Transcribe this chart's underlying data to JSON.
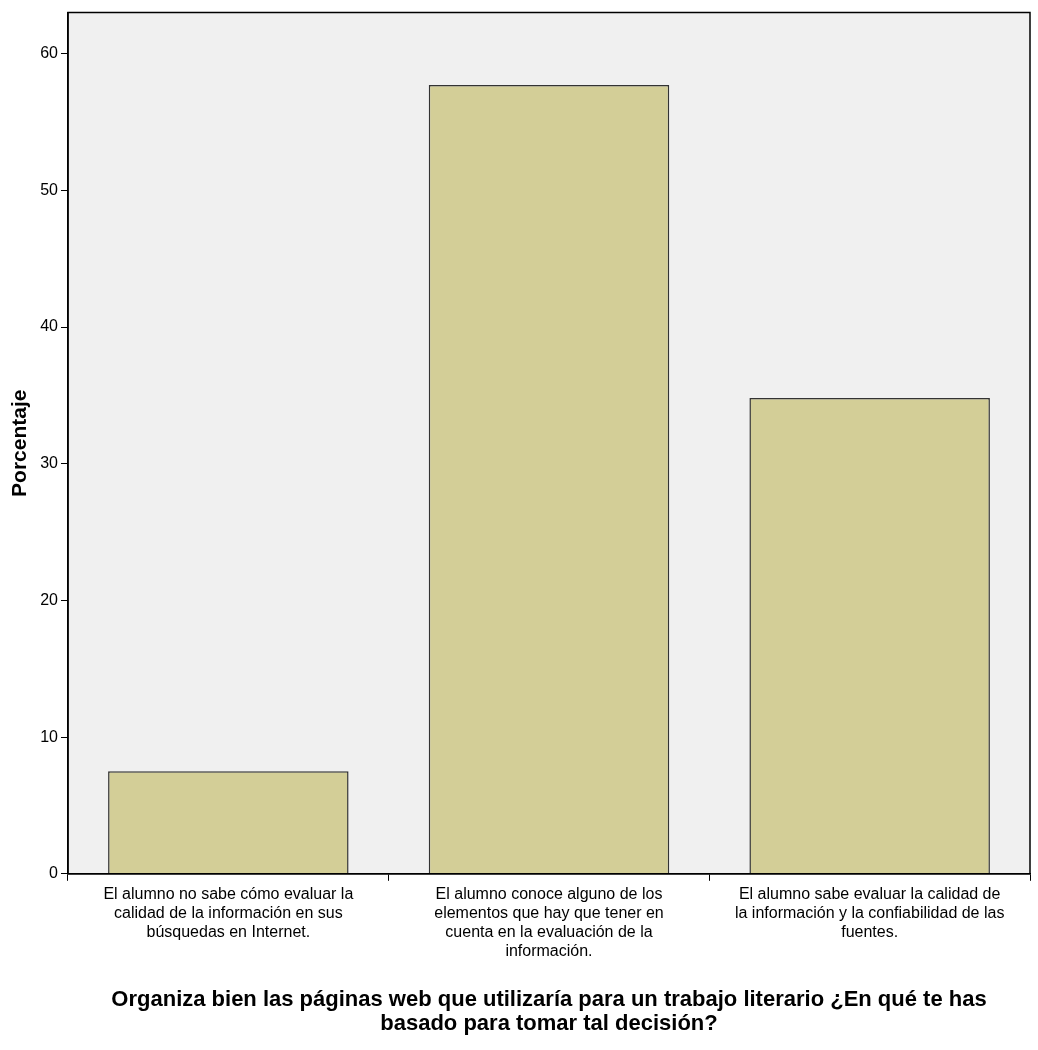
{
  "chart_data": {
    "type": "bar",
    "xlabel": "Organiza bien las páginas web que utilizaría para un trabajo literario ¿En qué te has basado para tomar tal decisión?",
    "ylabel": "Porcentaje",
    "categories": [
      "El alumno no sabe cómo evaluar la calidad de la información en sus búsquedas en Internet.",
      "El alumno conoce alguno de los elementos que hay que tener en cuenta en la evaluación de la información.",
      "El alumno sabe evaluar la calidad de la información y la confiabilidad de las fuentes."
    ],
    "values": [
      7.5,
      57.7,
      34.8
    ],
    "color": "#d3ce97",
    "ylim": [
      0,
      63
    ],
    "yticks": [
      0,
      10,
      20,
      30,
      40,
      50,
      60
    ],
    "grid": false,
    "legend": false
  }
}
